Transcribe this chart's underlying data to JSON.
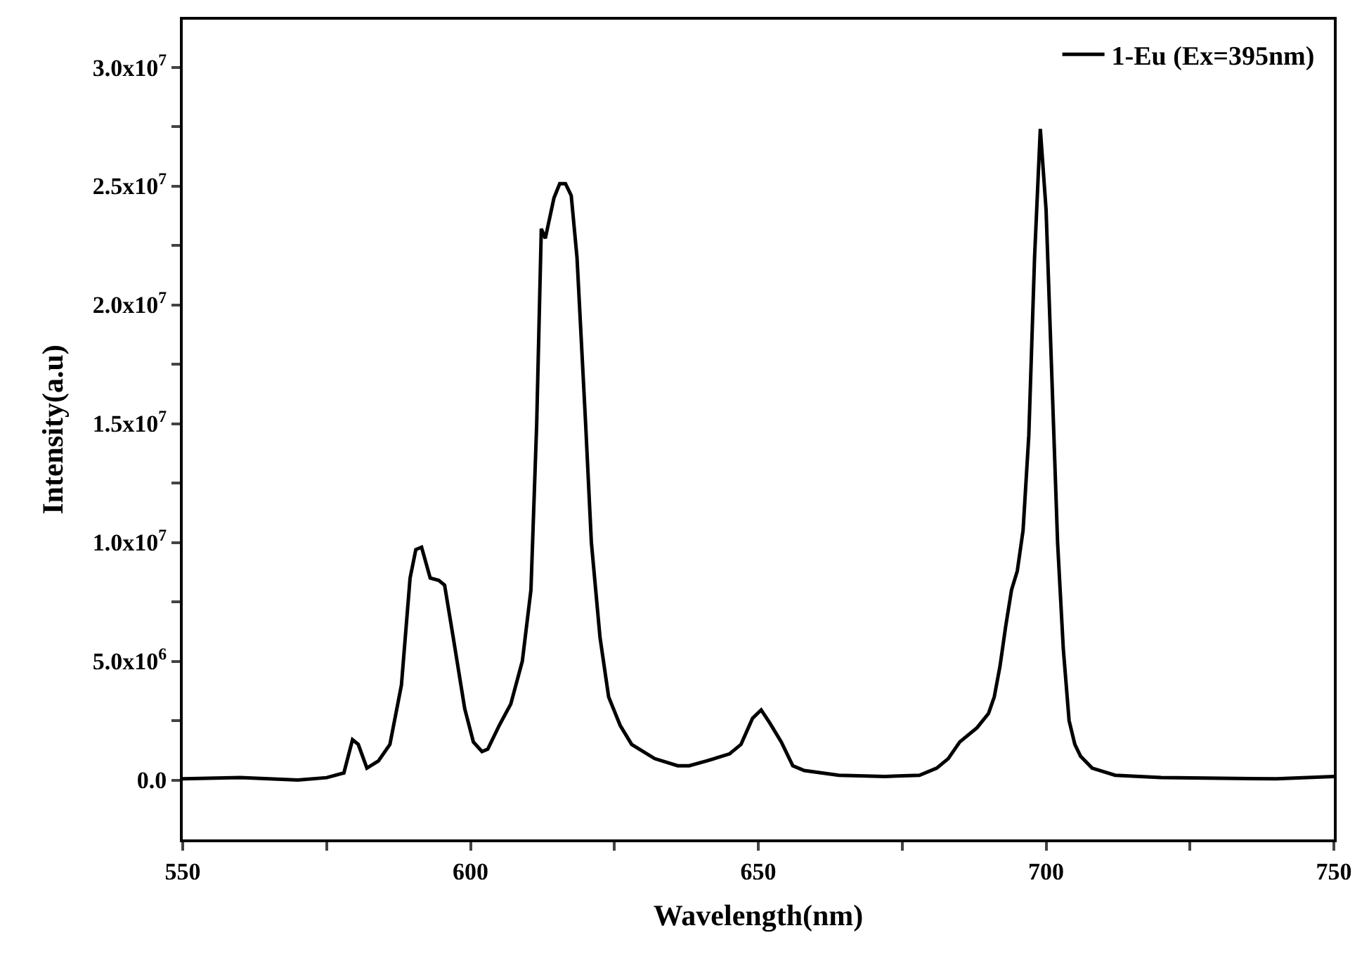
{
  "chart_data": {
    "type": "line",
    "xlabel": "Wavelength(nm)",
    "ylabel": "Intensity(a.u)",
    "x": [
      550,
      560,
      570,
      575,
      578,
      579.5,
      580.5,
      582,
      584,
      586,
      588,
      589.5,
      590.5,
      591.5,
      593,
      594.5,
      595.5,
      597,
      599,
      600.5,
      602,
      603,
      605,
      607,
      609,
      610.5,
      611.5,
      612.3,
      613,
      614.5,
      615.5,
      616.5,
      617.5,
      618.5,
      620,
      621,
      622.5,
      624,
      626,
      628,
      632,
      636,
      638,
      641,
      645,
      647,
      649,
      650.5,
      652,
      654,
      656,
      658,
      664,
      672,
      678,
      681,
      683,
      685,
      688,
      690,
      691,
      692,
      693,
      694,
      695,
      696,
      697,
      698,
      699,
      700,
      701,
      702,
      703,
      704,
      705,
      706,
      708,
      712,
      720,
      740,
      750
    ],
    "series": [
      {
        "name": "1-Eu (Ex=395nm)",
        "color": "#000000",
        "values": [
          50000,
          100000,
          0,
          100000,
          300000,
          1700000,
          1500000,
          500000,
          800000,
          1500000,
          4000000,
          8500000,
          9700000,
          9800000,
          8500000,
          8400000,
          8200000,
          6000000,
          3000000,
          1600000,
          1200000,
          1300000,
          2300000,
          3200000,
          5000000,
          8000000,
          15000000,
          23200000,
          22800000,
          24500000,
          25100000,
          25100000,
          24600000,
          22000000,
          15000000,
          10000000,
          6000000,
          3500000,
          2300000,
          1500000,
          900000,
          600000,
          600000,
          800000,
          1100000,
          1500000,
          2600000,
          2950000,
          2400000,
          1600000,
          600000,
          400000,
          200000,
          150000,
          200000,
          500000,
          900000,
          1600000,
          2200000,
          2800000,
          3500000,
          4800000,
          6500000,
          8000000,
          8800000,
          10500000,
          14500000,
          22000000,
          27400000,
          24000000,
          17000000,
          10000000,
          5500000,
          2500000,
          1500000,
          1000000,
          500000,
          200000,
          100000,
          50000,
          150000
        ]
      }
    ],
    "xlim": [
      550,
      750
    ],
    "xticks": [
      550,
      {
        "value": 575,
        "label": null
      },
      600,
      {
        "value": 625,
        "label": null
      },
      650,
      {
        "value": 675,
        "label": null
      },
      700,
      {
        "value": 725,
        "label": null
      },
      750
    ],
    "ylim": [
      -2500000,
      32000000
    ],
    "yticks": [
      {
        "value": 0,
        "label": "0.0"
      },
      {
        "value": 2500000,
        "label": null
      },
      {
        "value": 5000000,
        "label": "5.0x10$^{6}$"
      },
      {
        "value": 7500000,
        "label": null
      },
      {
        "value": 10000000,
        "label": "1.0x10$^{7}$"
      },
      {
        "value": 12500000,
        "label": null
      },
      {
        "value": 15000000,
        "label": "1.5x10$^{7}$"
      },
      {
        "value": 17500000,
        "label": null
      },
      {
        "value": 20000000,
        "label": "2.0x10$^{7}$"
      },
      {
        "value": 22500000,
        "label": null
      },
      {
        "value": 25000000,
        "label": "2.5x10$^{7}$"
      },
      {
        "value": 27500000,
        "label": null
      },
      {
        "value": 30000000,
        "label": "3.0x10$^{7}$"
      }
    ],
    "legend": "top right",
    "marker": "none",
    "line_style": "solid"
  }
}
